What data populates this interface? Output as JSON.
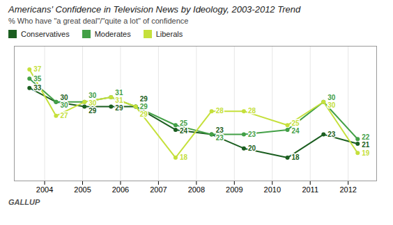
{
  "chart_data": {
    "type": "line",
    "title": "Americans' Confidence in Television News by Ideology, 2003-2012 Trend",
    "subtitle": "% Who have \"a great deal\"/\"quite a lot\" of confidence",
    "caption": "GALLUP",
    "x": [
      2003.6,
      2004.3,
      2005.05,
      2005.75,
      2006.4,
      2007.45,
      2008.4,
      2009.25,
      2010.4,
      2011.35,
      2012.25
    ],
    "series": [
      {
        "name": "Conservatives",
        "color": "#1b5e20",
        "values": [
          33,
          30,
          29,
          29,
          29,
          24,
          23,
          20,
          18,
          23,
          21
        ]
      },
      {
        "name": "Moderates",
        "color": "#43a047",
        "values": [
          35,
          30,
          30,
          31,
          29,
          25,
          23,
          23,
          24,
          30,
          22
        ]
      },
      {
        "name": "Liberals",
        "color": "#c5e03b",
        "values": [
          37,
          27,
          30,
          31,
          29,
          18,
          28,
          28,
          25,
          30,
          19
        ]
      }
    ],
    "xlim": [
      2003.2,
      2012.75
    ],
    "xticks": [
      2004,
      2005,
      2006,
      2007,
      2008,
      2009,
      2010,
      2011,
      2012
    ],
    "ylim": [
      13,
      42
    ],
    "grid": true,
    "legend": "top left",
    "data_labels": true,
    "tick_labels": "x",
    "marker": "circle"
  }
}
